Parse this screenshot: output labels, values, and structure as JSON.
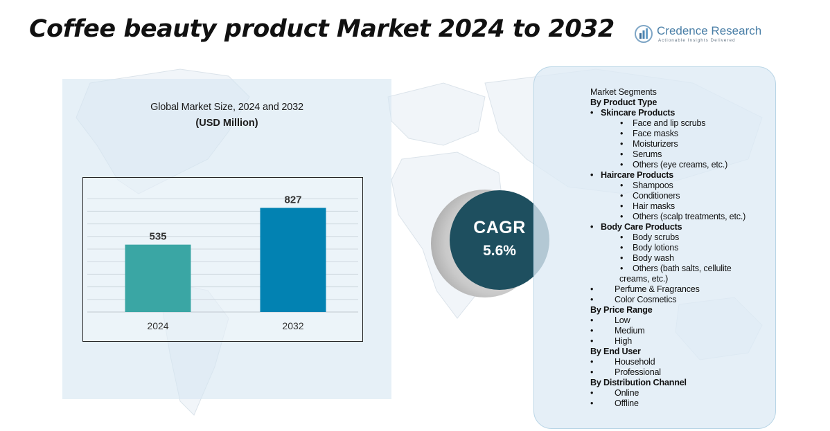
{
  "header": {
    "title": "Coffee beauty product Market 2024 to 2032",
    "logo_name": "Credence Research",
    "logo_tagline": "Actionable Insights Delivered"
  },
  "chart_data": {
    "type": "bar",
    "title": "Global Market Size, 2024 and 2032",
    "subtitle": "(USD Million)",
    "categories": [
      "2024",
      "2032"
    ],
    "values": [
      535,
      827
    ],
    "data_labels": [
      "535",
      "827"
    ],
    "colors": [
      "#3aa6a4",
      "#0282b2"
    ],
    "ylim": [
      0,
      1000
    ],
    "grid": true,
    "xlabel": "",
    "ylabel": ""
  },
  "cagr": {
    "label": "CAGR",
    "value": "5.6%"
  },
  "segments": {
    "heading": "Market Segments",
    "lines": [
      {
        "text": "By Product Type",
        "bold": true,
        "bullet": false,
        "level": 0
      },
      {
        "text": "Skincare Products",
        "bold": true,
        "bullet": true,
        "level": 1
      },
      {
        "text": "Face and lip scrubs",
        "bold": false,
        "bullet": true,
        "level": 2
      },
      {
        "text": "Face masks",
        "bold": false,
        "bullet": true,
        "level": 2
      },
      {
        "text": "Moisturizers",
        "bold": false,
        "bullet": true,
        "level": 2
      },
      {
        "text": "Serums",
        "bold": false,
        "bullet": true,
        "level": 2
      },
      {
        "text": "Others (eye creams, etc.)",
        "bold": false,
        "bullet": true,
        "level": 2
      },
      {
        "text": "Haircare Products",
        "bold": true,
        "bullet": true,
        "level": 1
      },
      {
        "text": "Shampoos",
        "bold": false,
        "bullet": true,
        "level": 2
      },
      {
        "text": "Conditioners",
        "bold": false,
        "bullet": true,
        "level": 2
      },
      {
        "text": "Hair masks",
        "bold": false,
        "bullet": true,
        "level": 2
      },
      {
        "text": "Others (scalp treatments, etc.)",
        "bold": false,
        "bullet": true,
        "level": 2
      },
      {
        "text": "Body Care Products",
        "bold": true,
        "bullet": true,
        "level": 1
      },
      {
        "text": "Body scrubs",
        "bold": false,
        "bullet": true,
        "level": 2
      },
      {
        "text": "Body lotions",
        "bold": false,
        "bullet": true,
        "level": 2
      },
      {
        "text": "Body wash",
        "bold": false,
        "bullet": true,
        "level": 2
      },
      {
        "text": "Others (bath salts, cellulite",
        "bold": false,
        "bullet": true,
        "level": 2
      },
      {
        "text": "creams, etc.)",
        "bold": false,
        "bullet": false,
        "level": 3
      },
      {
        "text": "Perfume & Fragrances",
        "bold": false,
        "bullet": true,
        "level": 1
      },
      {
        "text": "Color Cosmetics",
        "bold": false,
        "bullet": true,
        "level": 1
      },
      {
        "text": "By Price Range",
        "bold": true,
        "bullet": false,
        "level": 0
      },
      {
        "text": "Low",
        "bold": false,
        "bullet": true,
        "level": 1
      },
      {
        "text": "Medium",
        "bold": false,
        "bullet": true,
        "level": 1
      },
      {
        "text": "High",
        "bold": false,
        "bullet": true,
        "level": 1
      },
      {
        "text": "By End User",
        "bold": true,
        "bullet": false,
        "level": 0
      },
      {
        "text": "Household",
        "bold": false,
        "bullet": true,
        "level": 1
      },
      {
        "text": "Professional",
        "bold": false,
        "bullet": true,
        "level": 1
      },
      {
        "text": "By Distribution Channel",
        "bold": true,
        "bullet": false,
        "level": 0
      },
      {
        "text": "Online",
        "bold": false,
        "bullet": true,
        "level": 1
      },
      {
        "text": "Offline",
        "bold": false,
        "bullet": true,
        "level": 1
      }
    ]
  }
}
